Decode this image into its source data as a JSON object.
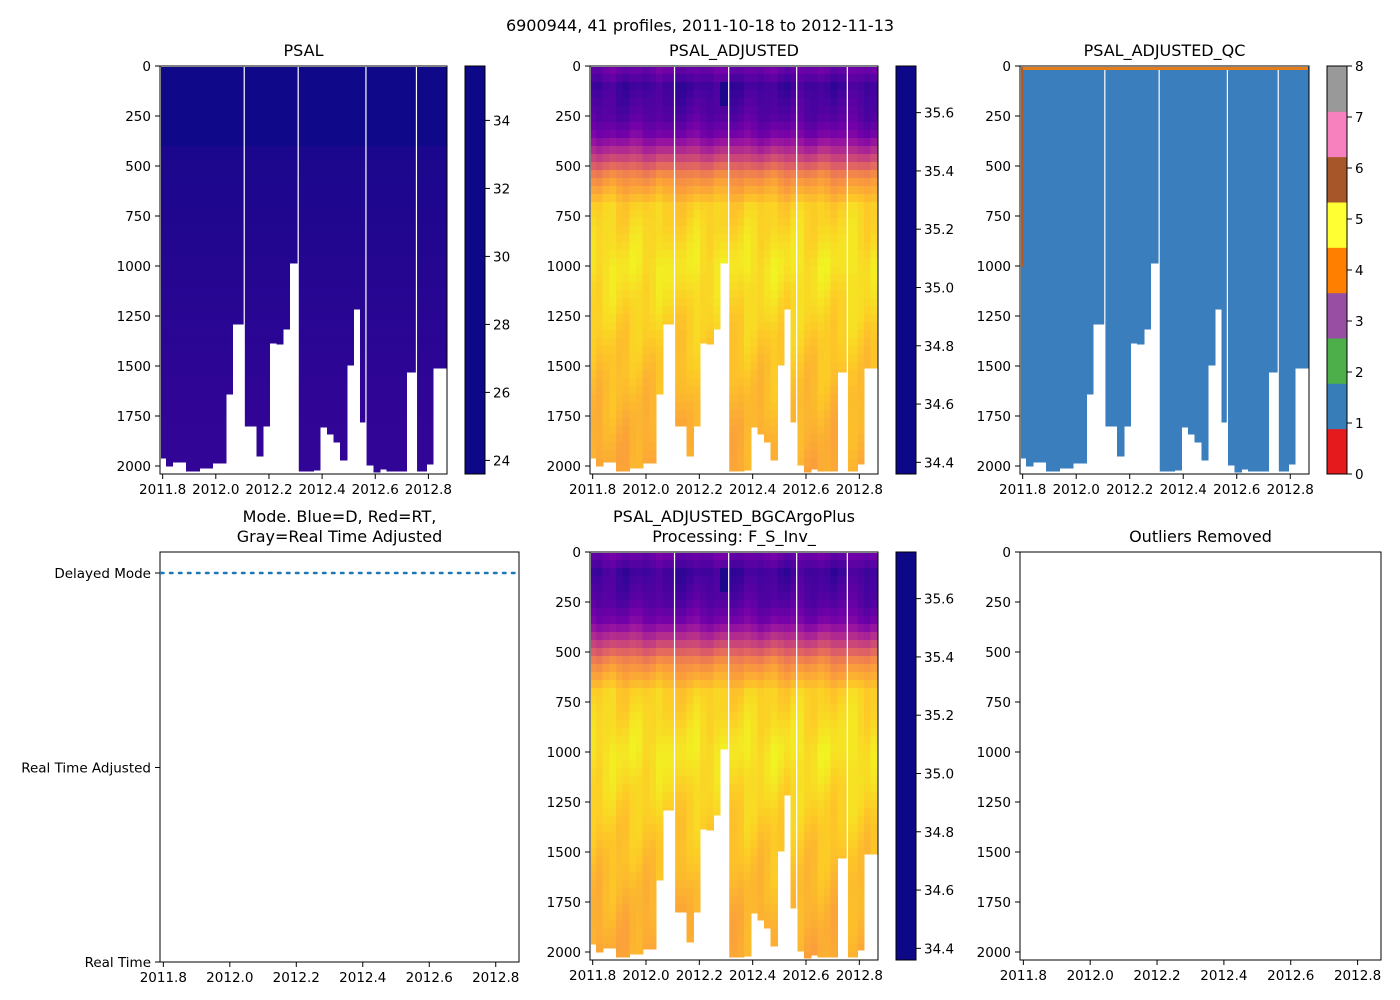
{
  "figure": {
    "suptitle": "6900944, 41 profiles, 2011-10-18 to 2012-11-13"
  },
  "colors": {
    "plasma": [
      "#0d0887",
      "#46039f",
      "#7201a8",
      "#9c179e",
      "#bd3786",
      "#d8576b",
      "#ed7953",
      "#fb9f3a",
      "#fdca26",
      "#f0f921"
    ],
    "mode_line": "#1f77b4",
    "qc_good": "#3a7ebd",
    "qc_top": "#e67d19",
    "qc_edge": "#b85a1e",
    "qc_palette": [
      "#e41a1c",
      "#377eb8",
      "#4daf4a",
      "#984ea3",
      "#ff7f00",
      "#ffff33",
      "#a65628",
      "#f781bf",
      "#999999"
    ]
  },
  "chart_data": [
    {
      "id": "psal",
      "type": "heatmap",
      "title": "PSAL",
      "x_ticks": [
        "2011.8",
        "2012.0",
        "2012.2",
        "2012.4",
        "2012.6",
        "2012.8"
      ],
      "y_ticks": [
        "0",
        "250",
        "500",
        "750",
        "1000",
        "1250",
        "1500",
        "1750",
        "2000"
      ],
      "x_range": [
        2011.79,
        2012.87
      ],
      "y_range": [
        2040,
        0
      ],
      "colorbar": {
        "ticks": [
          "24",
          "26",
          "28",
          "30",
          "32",
          "34"
        ],
        "range": [
          23.6,
          35.6
        ],
        "colormap": "plasma_r"
      },
      "value_note": "34.5-35.6 throughout"
    },
    {
      "id": "psal_adj",
      "type": "heatmap",
      "title": "PSAL_ADJUSTED",
      "x_ticks": [
        "2011.8",
        "2012.0",
        "2012.2",
        "2012.4",
        "2012.6",
        "2012.8"
      ],
      "y_ticks": [
        "0",
        "250",
        "500",
        "750",
        "1000",
        "1250",
        "1500",
        "1750",
        "2000"
      ],
      "x_range": [
        2011.79,
        2012.87
      ],
      "y_range": [
        2040,
        0
      ],
      "colorbar": {
        "ticks": [
          "34.4",
          "34.6",
          "34.8",
          "35.0",
          "35.2",
          "35.4",
          "35.6"
        ],
        "range": [
          34.36,
          35.76
        ],
        "colormap": "plasma_r"
      },
      "depth_profile": [
        [
          0,
          35.45
        ],
        [
          100,
          35.62
        ],
        [
          250,
          35.55
        ],
        [
          350,
          35.42
        ],
        [
          450,
          35.1
        ],
        [
          550,
          34.75
        ],
        [
          700,
          34.5
        ],
        [
          1000,
          34.42
        ],
        [
          1400,
          34.52
        ],
        [
          1800,
          34.6
        ],
        [
          2000,
          34.63
        ]
      ]
    },
    {
      "id": "psal_qc",
      "type": "heatmap",
      "title": "PSAL_ADJUSTED_QC",
      "x_ticks": [
        "2011.8",
        "2012.0",
        "2012.2",
        "2012.4",
        "2012.6",
        "2012.8"
      ],
      "y_ticks": [
        "0",
        "250",
        "500",
        "750",
        "1000",
        "1250",
        "1500",
        "1750",
        "2000"
      ],
      "x_range": [
        2011.79,
        2012.87
      ],
      "y_range": [
        2040,
        0
      ],
      "colorbar": {
        "ticks": [
          "0",
          "1",
          "2",
          "3",
          "4",
          "5",
          "6",
          "7",
          "8"
        ],
        "range": [
          0,
          8
        ]
      },
      "qc_values": {
        "body": 1,
        "surface_row": 4
      }
    },
    {
      "id": "mode",
      "type": "line",
      "title": "Mode. Blue=D, Red=RT,",
      "title_line2": "Gray=Real Time Adjusted",
      "x_ticks": [
        "2011.8",
        "2012.0",
        "2012.2",
        "2012.4",
        "2012.6",
        "2012.8"
      ],
      "y_categories": [
        "Delayed Mode",
        "Real Time Adjusted",
        "Real Time"
      ],
      "x_range": [
        2011.79,
        2012.87
      ],
      "series": [
        {
          "name": "D",
          "value": "Delayed Mode",
          "style": "dotted"
        }
      ]
    },
    {
      "id": "bgc",
      "type": "heatmap",
      "title": "PSAL_ADJUSTED_BGCArgoPlus",
      "title_line2": "Processing: F_S_Inv_",
      "x_ticks": [
        "2011.8",
        "2012.0",
        "2012.2",
        "2012.4",
        "2012.6",
        "2012.8"
      ],
      "y_ticks": [
        "0",
        "250",
        "500",
        "750",
        "1000",
        "1250",
        "1500",
        "1750",
        "2000"
      ],
      "x_range": [
        2011.79,
        2012.87
      ],
      "y_range": [
        2040,
        0
      ],
      "colorbar": {
        "ticks": [
          "34.4",
          "34.6",
          "34.8",
          "35.0",
          "35.2",
          "35.4",
          "35.6"
        ],
        "range": [
          34.36,
          35.76
        ],
        "colormap": "plasma_r"
      }
    },
    {
      "id": "outliers",
      "type": "scatter",
      "title": "Outliers Removed",
      "x_ticks": [
        "2011.8",
        "2012.0",
        "2012.2",
        "2012.4",
        "2012.6",
        "2012.8"
      ],
      "y_ticks": [
        "0",
        "250",
        "500",
        "750",
        "1000",
        "1250",
        "1500",
        "1750",
        "2000"
      ],
      "x_range": [
        2011.79,
        2012.87
      ],
      "y_range": [
        2040,
        0
      ],
      "points": []
    }
  ],
  "profiles": {
    "times": [
      2011.8,
      2011.825,
      2011.85,
      2011.875,
      2011.9,
      2011.925,
      2011.95,
      2011.975,
      2012.0,
      2012.025,
      2012.05,
      2012.075,
      2012.14,
      2012.165,
      2012.19,
      2012.215,
      2012.24,
      2012.265,
      2012.29,
      2012.33,
      2012.355,
      2012.38,
      2012.405,
      2012.43,
      2012.455,
      2012.48,
      2012.505,
      2012.53,
      2012.555,
      2012.58,
      2012.605,
      2012.63,
      2012.655,
      2012.68,
      2012.705,
      2012.73,
      2012.78,
      2012.805,
      2012.83,
      2012.855,
      2012.88
    ],
    "max_depth": [
      1960,
      2000,
      1980,
      1980,
      2025,
      2025,
      2010,
      2010,
      1985,
      1985,
      1640,
      1290,
      1800,
      1950,
      1800,
      1385,
      1390,
      1315,
      985,
      2025,
      2025,
      2020,
      1805,
      1840,
      1880,
      1970,
      1495,
      1215,
      1780,
      1995,
      2030,
      2015,
      2025,
      2025,
      2025,
      1530,
      2025,
      1990,
      1510,
      1510,
      2000
    ],
    "gaps": [
      2012.107,
      2012.31,
      2012.565,
      2012.755
    ]
  }
}
